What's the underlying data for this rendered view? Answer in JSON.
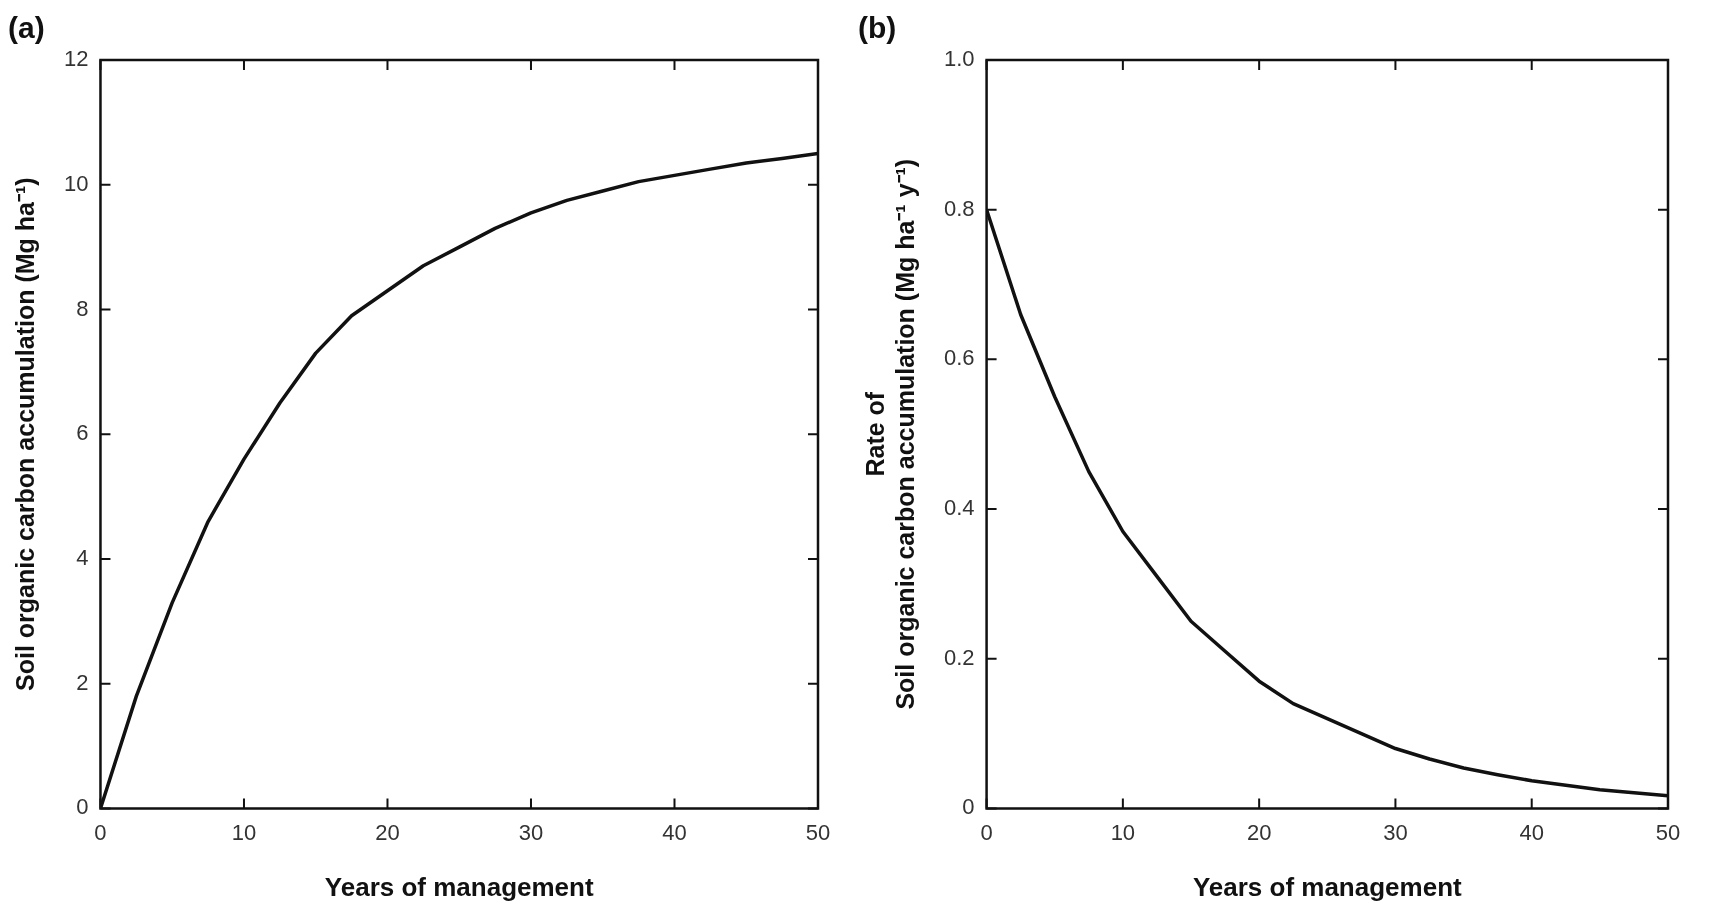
{
  "chart_data": [
    {
      "type": "line",
      "title": "(a)",
      "xlabel": "Years of management",
      "ylabel": "Soil organic carbon accumulation (Mg ha⁻¹)",
      "x": [
        0,
        2.5,
        5,
        7.5,
        10,
        12.5,
        15,
        17.5,
        20,
        22.5,
        25,
        27.5,
        30,
        32.5,
        35,
        37.5,
        40,
        42.5,
        45,
        47.5,
        50
      ],
      "xlim": [
        0,
        50
      ],
      "xticks": [
        0,
        10,
        20,
        30,
        40,
        50
      ],
      "ylim": [
        0,
        12
      ],
      "yticks": [
        0,
        2,
        4,
        6,
        8,
        10,
        12
      ],
      "grid": false,
      "legend": false,
      "marker": "none",
      "line_style": "solid",
      "series": [
        {
          "color": "#111111",
          "values": [
            0,
            1.8,
            3.3,
            4.6,
            5.6,
            6.5,
            7.3,
            7.9,
            8.3,
            8.7,
            9.0,
            9.3,
            9.55,
            9.75,
            9.9,
            10.05,
            10.15,
            10.25,
            10.35,
            10.42,
            10.5
          ]
        }
      ]
    },
    {
      "type": "line",
      "title": "(b)",
      "xlabel": "Years of management",
      "ylabel": "Rate of\nSoil organic carbon accumulation (Mg ha⁻¹ y⁻¹)",
      "x": [
        0,
        2.5,
        5,
        7.5,
        10,
        12.5,
        15,
        17.5,
        20,
        22.5,
        25,
        27.5,
        30,
        32.5,
        35,
        37.5,
        40,
        42.5,
        45,
        47.5,
        50
      ],
      "xlim": [
        0,
        50
      ],
      "xticks": [
        0,
        10,
        20,
        30,
        40,
        50
      ],
      "ylim": [
        0,
        1
      ],
      "yticks": [
        0,
        0.2,
        0.4,
        0.6,
        0.8,
        {
          "value": 1,
          "label": "1.0"
        }
      ],
      "grid": false,
      "legend": false,
      "marker": "none",
      "line_style": "solid",
      "series": [
        {
          "color": "#111111",
          "values": [
            0.8,
            0.66,
            0.55,
            0.45,
            0.37,
            0.31,
            0.25,
            0.21,
            0.17,
            0.14,
            0.12,
            0.1,
            0.08,
            0.066,
            0.054,
            0.045,
            0.037,
            0.031,
            0.025,
            0.021,
            0.017
          ]
        }
      ]
    }
  ]
}
